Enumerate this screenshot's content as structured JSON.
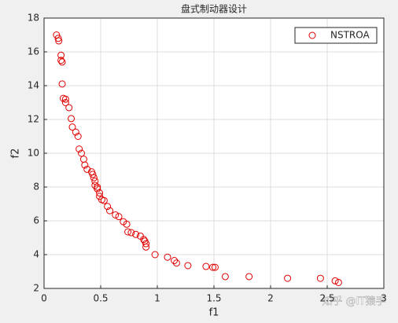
{
  "chart_data": {
    "type": "scatter",
    "title": "盘式制动器设计",
    "x_label": "f1",
    "y_label": "f2",
    "series": [
      {
        "name": "NSTROA",
        "color": "#e00000",
        "x": [
          0.11,
          0.125,
          0.13,
          0.15,
          0.15,
          0.16,
          0.16,
          0.17,
          0.19,
          0.19,
          0.22,
          0.24,
          0.25,
          0.28,
          0.3,
          0.31,
          0.33,
          0.35,
          0.36,
          0.38,
          0.42,
          0.43,
          0.44,
          0.45,
          0.45,
          0.47,
          0.47,
          0.49,
          0.49,
          0.51,
          0.53,
          0.56,
          0.58,
          0.63,
          0.66,
          0.7,
          0.73,
          0.74,
          0.77,
          0.81,
          0.85,
          0.88,
          0.89,
          0.9,
          0.9,
          0.98,
          1.09,
          1.15,
          1.17,
          1.27,
          1.43,
          1.49,
          1.51,
          1.6,
          1.81,
          2.15,
          2.44,
          2.57,
          2.6
        ],
        "values": [
          17.0,
          16.8,
          16.65,
          15.8,
          15.5,
          15.4,
          14.1,
          13.25,
          13.2,
          13.0,
          12.7,
          12.05,
          11.55,
          11.25,
          11.0,
          10.25,
          10.0,
          9.65,
          9.3,
          9.05,
          8.9,
          8.75,
          8.55,
          8.35,
          8.1,
          8.0,
          7.9,
          7.65,
          7.45,
          7.25,
          7.2,
          6.85,
          6.6,
          6.35,
          6.25,
          5.95,
          5.8,
          5.35,
          5.3,
          5.2,
          5.1,
          4.9,
          4.8,
          4.65,
          4.45,
          4.0,
          3.85,
          3.65,
          3.5,
          3.35,
          3.3,
          3.25,
          3.25,
          2.7,
          2.7,
          2.6,
          2.6,
          2.45,
          2.35
        ]
      }
    ],
    "xlim": [
      0,
      3
    ],
    "xticks": [
      0,
      0.5,
      1,
      1.5,
      2,
      2.5,
      3
    ],
    "ylim": [
      2,
      18
    ],
    "yticks": [
      2,
      4,
      6,
      8,
      10,
      12,
      14,
      16,
      18
    ],
    "grid": true,
    "legend": "top-right"
  },
  "watermark": "知乎 @IT猿手"
}
